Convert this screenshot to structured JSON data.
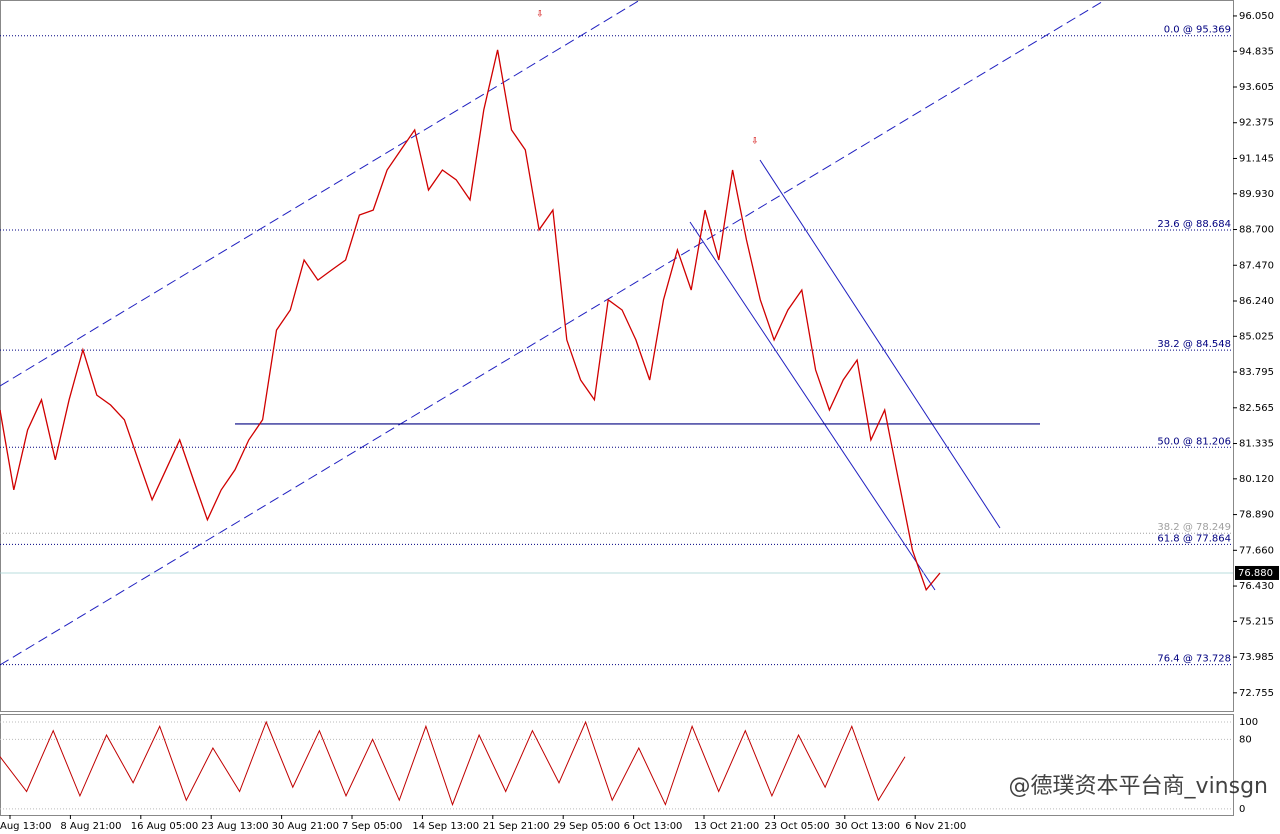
{
  "chart_data": {
    "type": "line",
    "ylim": [
      72.13,
      96.53
    ],
    "yticks": [
      {
        "value": 96.05,
        "label": "96.050"
      },
      94.835,
      93.605,
      92.375,
      91.145,
      {
        "value": 89.93,
        "label": "89.930"
      },
      {
        "value": 88.7,
        "label": "88.700"
      },
      {
        "value": 87.47,
        "label": "87.470"
      },
      {
        "value": 86.24,
        "label": "86.240"
      },
      85.025,
      83.795,
      82.565,
      81.335,
      {
        "value": 80.12,
        "label": "80.120"
      },
      {
        "value": 78.89,
        "label": "78.890"
      },
      {
        "value": 77.66,
        "label": "77.660"
      },
      {
        "value": 76.43,
        "label": "76.430"
      },
      75.215,
      73.985,
      72.755
    ],
    "categories": [
      "Aug 13:00",
      "8 Aug 21:00",
      "16 Aug 05:00",
      "23 Aug 13:00",
      "30 Aug 21:00",
      "7 Sep 05:00",
      "14 Sep 13:00",
      "21 Sep 21:00",
      "29 Sep 05:00",
      "6 Oct 13:00",
      "13 Oct 21:00",
      "23 Oct 05:00",
      "30 Oct 13:00",
      "6 Nov 21:00"
    ],
    "price": {
      "color": "#d00000",
      "values": [
        82.49,
        79.74,
        81.8,
        82.84,
        80.77,
        82.84,
        84.56,
        83.0,
        82.66,
        82.15,
        80.77,
        79.4,
        80.43,
        81.46,
        80.08,
        78.71,
        79.74,
        80.43,
        81.46,
        82.15,
        85.24,
        85.93,
        87.65,
        86.96,
        87.31,
        87.65,
        89.2,
        89.37,
        90.75,
        91.44,
        92.13,
        90.06,
        90.75,
        90.41,
        89.72,
        92.82,
        94.88,
        92.13,
        91.44,
        88.69,
        89.37,
        84.9,
        83.52,
        82.84,
        86.28,
        85.93,
        84.9,
        83.52,
        86.28,
        88.0,
        86.62,
        89.37,
        87.65,
        90.75,
        88.34,
        86.28,
        84.9,
        85.93,
        86.62,
        83.87,
        82.49,
        83.52,
        84.21,
        81.46,
        82.49,
        80.08,
        77.67,
        76.3,
        76.88
      ]
    },
    "fib_levels": [
      {
        "label": "0.0 @ 95.369",
        "value": 95.369,
        "color": "#000080"
      },
      {
        "label": "23.6 @ 88.684",
        "value": 88.684,
        "color": "#000080"
      },
      {
        "label": "38.2 @ 84.548",
        "value": 84.548,
        "color": "#000080"
      },
      {
        "label": "50.0 @ 81.206",
        "value": 81.206,
        "color": "#000080"
      },
      {
        "label": "38.2 @ 78.249",
        "value": 78.249,
        "color": "#a0a0a0"
      },
      {
        "label": "61.8 @ 77.864",
        "value": 77.864,
        "color": "#000080"
      },
      {
        "label": "76.4 @ 73.728",
        "value": 73.728,
        "color": "#000080"
      }
    ],
    "horizontal_line": 82.01,
    "current_price": {
      "value": 76.88,
      "label": "76.880"
    },
    "oscillator": {
      "ylim": [
        -7,
        108
      ],
      "yticks": [
        100,
        80,
        0
      ],
      "color": "#c00000",
      "values": [
        60,
        20,
        90,
        15,
        85,
        30,
        95,
        10,
        70,
        20,
        100,
        25,
        90,
        15,
        80,
        10,
        95,
        5,
        85,
        20,
        90,
        30,
        100,
        10,
        70,
        5,
        95,
        20,
        90,
        15,
        85,
        25,
        95,
        10,
        60
      ]
    },
    "watermark": "@德璞资本平台商_vinsgn"
  }
}
